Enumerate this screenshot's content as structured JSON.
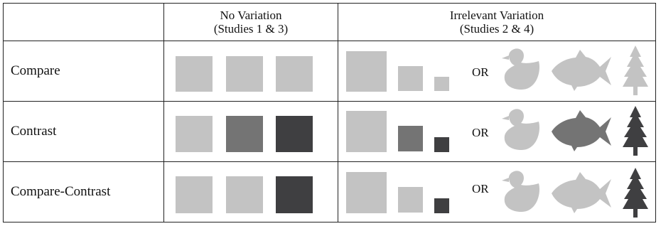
{
  "header": {
    "col1_line1": "No Variation",
    "col1_line2": "(Studies 1 & 3)",
    "col2_line1": "Irrelevant Variation",
    "col2_line2": "(Studies 2 & 4)"
  },
  "rows": [
    {
      "label": "Compare",
      "or": "OR"
    },
    {
      "label": "Contrast",
      "or": "OR"
    },
    {
      "label": "Compare-Contrast",
      "or": "OR"
    }
  ],
  "colors": {
    "light": "#c3c3c3",
    "medium": "#747474",
    "dark": "#3f3f41",
    "border": "#222222"
  },
  "icons": [
    "duck-icon",
    "fish-icon",
    "tree-icon"
  ]
}
